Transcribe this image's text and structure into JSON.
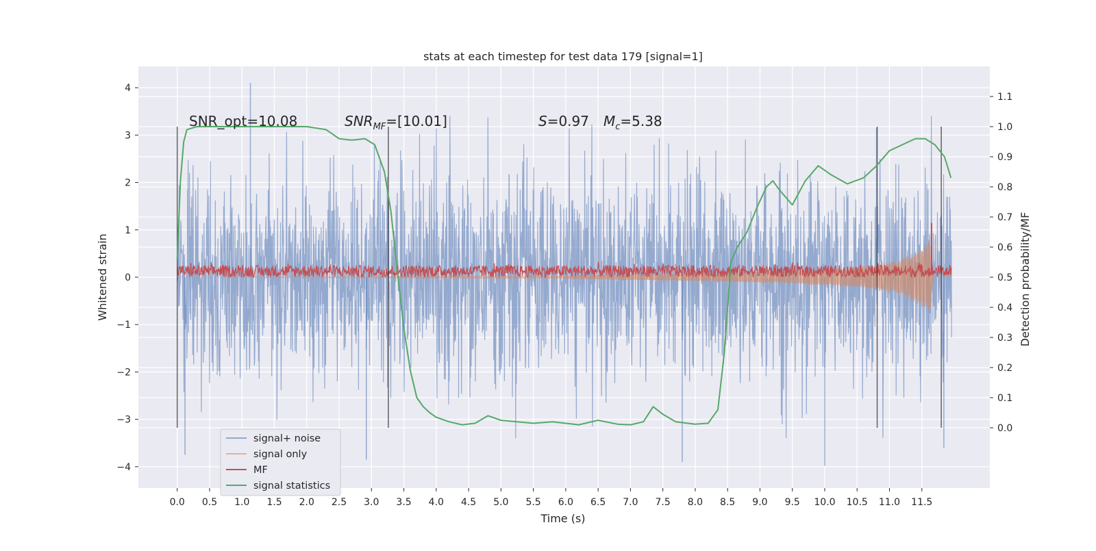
{
  "chart_data": {
    "type": "line",
    "title": "stats at each timestep for test data 179 [signal=1]",
    "xlabel": "Time (s)",
    "ylabel_left": "Whitened strain",
    "ylabel_right": "Detection probability/MF",
    "xlim": [
      -0.6,
      12.55
    ],
    "ylim_left": [
      -4.45,
      4.45
    ],
    "ylim_right": [
      -0.2,
      1.2
    ],
    "x_ticks": [
      0.0,
      0.5,
      1.0,
      1.5,
      2.0,
      2.5,
      3.0,
      3.5,
      4.0,
      4.5,
      5.0,
      5.5,
      6.0,
      6.5,
      7.0,
      7.5,
      8.0,
      8.5,
      9.0,
      9.5,
      10.0,
      10.5,
      11.0,
      11.5
    ],
    "x_tick_labels": [
      "0.0",
      "0.5",
      "1.0",
      "1.5",
      "2.0",
      "2.5",
      "3.0",
      "3.5",
      "4.0",
      "4.5",
      "5.0",
      "5.5",
      "6.0",
      "6.5",
      "7.0",
      "7.5",
      "8.0",
      "8.5",
      "9.0",
      "9.5",
      "10.0",
      "10.5",
      "11.0",
      "11.5"
    ],
    "y_left_ticks": [
      -4,
      -3,
      -2,
      -1,
      0,
      1,
      2,
      3,
      4
    ],
    "y_left_tick_labels": [
      "−4",
      "−3",
      "−2",
      "−1",
      "0",
      "1",
      "2",
      "3",
      "4"
    ],
    "y_right_ticks": [
      0.0,
      0.1,
      0.2,
      0.3,
      0.4,
      0.5,
      0.6,
      0.7,
      0.8,
      0.9,
      1.0,
      1.1
    ],
    "y_right_tick_labels": [
      "0.0",
      "0.1",
      "0.2",
      "0.3",
      "0.4",
      "0.5",
      "0.6",
      "0.7",
      "0.8",
      "0.9",
      "1.0",
      "1.1"
    ],
    "grid": true,
    "legend_position": "lower-left",
    "series": [
      {
        "name": "signal+ noise",
        "color": "#4c72b0",
        "axis": "left",
        "x_range": [
          0.0,
          11.96
        ],
        "envelope_typical": [
          -2.5,
          2.5
        ],
        "notable_peaks": [
          [
            1.13,
            4.1
          ],
          [
            0.12,
            -3.75
          ],
          [
            2.92,
            -3.85
          ],
          [
            7.8,
            -3.9
          ],
          [
            10.0,
            -3.98
          ],
          [
            11.84,
            -3.6
          ],
          [
            10.8,
            3.15
          ]
        ]
      },
      {
        "name": "signal only",
        "color": "#dd8452",
        "axis": "left",
        "x": [
          0.0,
          5.5,
          7.0,
          8.5,
          9.5,
          10.3,
          10.8,
          11.2,
          11.5,
          11.63,
          11.68,
          11.96
        ],
        "amplitude": [
          0.0,
          0.02,
          0.06,
          0.1,
          0.14,
          0.2,
          0.28,
          0.4,
          0.62,
          0.85,
          0.0,
          0.0
        ]
      },
      {
        "name": "MF",
        "color": "#c44e52",
        "axis": "right",
        "x_range": [
          0.0,
          11.96
        ],
        "baseline": 0.51,
        "noise_band": [
          0.5,
          0.54
        ],
        "peak": [
          11.65,
          0.68
        ]
      },
      {
        "name": "signal statistics",
        "color": "#55a868",
        "axis": "right",
        "x": [
          0.0,
          0.05,
          0.1,
          0.15,
          0.3,
          0.6,
          1.0,
          1.5,
          2.0,
          2.3,
          2.5,
          2.7,
          2.9,
          3.05,
          3.2,
          3.3,
          3.4,
          3.5,
          3.6,
          3.7,
          3.8,
          3.9,
          4.0,
          4.2,
          4.4,
          4.6,
          4.8,
          5.0,
          5.5,
          5.8,
          6.2,
          6.5,
          6.8,
          7.0,
          7.2,
          7.35,
          7.5,
          7.7,
          8.0,
          8.2,
          8.35,
          8.45,
          8.55,
          8.65,
          8.8,
          8.95,
          9.1,
          9.2,
          9.3,
          9.5,
          9.7,
          9.9,
          10.1,
          10.35,
          10.6,
          10.8,
          11.0,
          11.2,
          11.4,
          11.55,
          11.7,
          11.85,
          11.95
        ],
        "y": [
          0.56,
          0.82,
          0.95,
          0.99,
          1.0,
          1.0,
          1.0,
          1.0,
          1.0,
          0.99,
          0.96,
          0.955,
          0.96,
          0.94,
          0.85,
          0.72,
          0.52,
          0.33,
          0.19,
          0.1,
          0.07,
          0.05,
          0.035,
          0.02,
          0.01,
          0.015,
          0.04,
          0.025,
          0.015,
          0.02,
          0.01,
          0.025,
          0.012,
          0.01,
          0.02,
          0.07,
          0.045,
          0.02,
          0.012,
          0.015,
          0.06,
          0.25,
          0.55,
          0.6,
          0.65,
          0.73,
          0.8,
          0.82,
          0.79,
          0.74,
          0.82,
          0.87,
          0.84,
          0.81,
          0.83,
          0.87,
          0.92,
          0.94,
          0.96,
          0.96,
          0.94,
          0.9,
          0.83
        ]
      }
    ],
    "vertical_markers": [
      0.0,
      3.26,
      10.81,
      11.8
    ],
    "annotations": {
      "snr_opt": "SNR_opt=10.08",
      "snr_mf_base": "SNR",
      "snr_mf_sub": "MF",
      "snr_mf_value": "=[10.01]",
      "s_symbol": "S",
      "s_value": "=0.97",
      "mc_symbol": "M",
      "mc_sub": "c",
      "mc_value": "=5.38"
    }
  }
}
